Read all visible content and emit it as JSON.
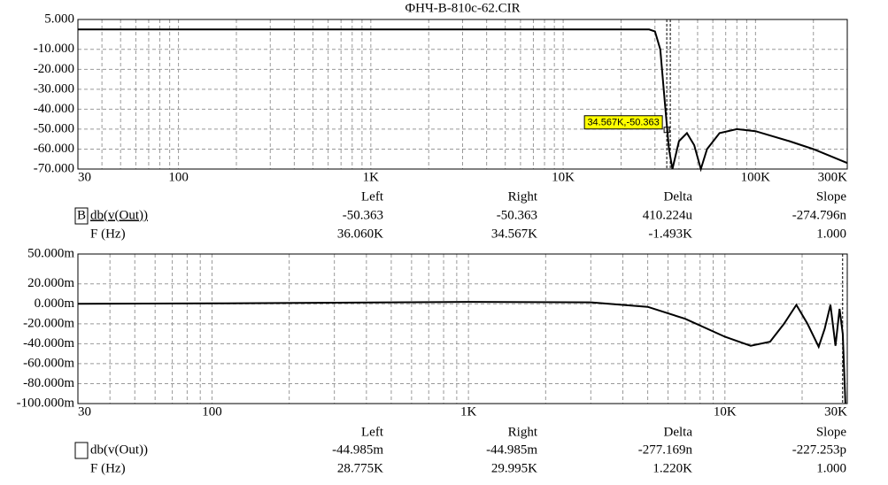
{
  "chart_data": [
    {
      "type": "line",
      "title": "ФНЧ-В-810с-62.CIR",
      "log_x": true,
      "grid": true,
      "minor_grid": true,
      "x": [
        30,
        1000,
        10000,
        28000,
        30000,
        32000,
        34000,
        35500,
        37000,
        40000,
        44000,
        48000,
        52000,
        56000,
        65000,
        80000,
        100000,
        150000,
        200000,
        300000
      ],
      "series": [
        {
          "name": "db(v(Out))",
          "color": "#000000",
          "values": [
            0,
            0,
            0,
            0,
            -1,
            -10,
            -40,
            -60,
            -70,
            -56,
            -52,
            -58,
            -70,
            -60,
            -52,
            -50,
            -51,
            -56,
            -60,
            -67
          ]
        }
      ],
      "xlim": [
        30,
        300000
      ],
      "xticks": [
        30,
        100,
        {
          "value": 1000,
          "label": "1K"
        },
        {
          "value": 10000,
          "label": "10K"
        },
        {
          "value": 100000,
          "label": "100K"
        },
        {
          "value": 300000,
          "label": "300K"
        }
      ],
      "ylim": [
        -70,
        5
      ],
      "yticks": [
        {
          "value": 5,
          "label": "5.000"
        },
        {
          "value": -10,
          "label": "-10.000"
        },
        {
          "value": -20,
          "label": "-20.000"
        },
        {
          "value": -30,
          "label": "-30.000"
        },
        {
          "value": -40,
          "label": "-40.000"
        },
        {
          "value": -50,
          "label": "-50.000"
        },
        {
          "value": -60,
          "label": "-60.000"
        },
        {
          "value": -70,
          "label": "-70.000"
        }
      ],
      "annotation": "34.567K,-50.363",
      "plot_marker": "B",
      "cursor_columns": [
        "Left",
        "Right",
        "Delta",
        "Slope"
      ],
      "cursor_rows": [
        {
          "values": [
            -50.363,
            -50.363,
            0.000410224,
            -2.74796e-07
          ],
          "value_labels": [
            "-50.363",
            "-50.363",
            "410.224u",
            "-274.796n"
          ]
        },
        {
          "name": "F (Hz)",
          "values": [
            36060,
            34567,
            -1493,
            1
          ],
          "value_labels": [
            "36.060K",
            "34.567K",
            "-1.493K",
            "1.000"
          ]
        }
      ]
    },
    {
      "type": "line",
      "log_x": true,
      "grid": true,
      "minor_grid": true,
      "x": [
        30,
        100,
        1000,
        3000,
        5000,
        7000,
        10000,
        12600,
        15000,
        17000,
        19000,
        21000,
        23200,
        24500,
        25800,
        27000,
        28000,
        28800,
        29500
      ],
      "series": [
        {
          "name": "db(v(Out))",
          "color": "#000000",
          "values": [
            0,
            0.0005,
            0.002,
            0.0015,
            -0.003,
            -0.015,
            -0.033,
            -0.042,
            -0.038,
            -0.02,
            -0.001,
            -0.02,
            -0.043,
            -0.025,
            -0.001,
            -0.042,
            -0.005,
            -0.03,
            -0.1
          ]
        }
      ],
      "xlim": [
        30,
        30000
      ],
      "xticks": [
        30,
        100,
        {
          "value": 1000,
          "label": "1K"
        },
        {
          "value": 10000,
          "label": "10K"
        },
        {
          "value": 30000,
          "label": "30K"
        }
      ],
      "ylim": [
        -0.1,
        0.05
      ],
      "yticks": [
        {
          "value": 0.05,
          "label": "50.000m"
        },
        {
          "value": 0.02,
          "label": "20.000m"
        },
        {
          "value": 0,
          "label": "0.000m"
        },
        {
          "value": -0.02,
          "label": "-20.000m"
        },
        {
          "value": -0.04,
          "label": "-40.000m"
        },
        {
          "value": -0.06,
          "label": "-60.000m"
        },
        {
          "value": -0.08,
          "label": "-80.000m"
        },
        {
          "value": -0.1,
          "label": "-100.000m"
        }
      ],
      "cursor_columns": [
        "Left",
        "Right",
        "Delta",
        "Slope"
      ],
      "cursor_rows": [
        {
          "values": [
            -0.044985,
            -0.044985,
            -2.77169e-07,
            -2.27253e-10
          ],
          "value_labels": [
            "-44.985m",
            "-44.985m",
            "-277.169n",
            "-227.253p"
          ]
        },
        {
          "name": "F (Hz)",
          "values": [
            28775,
            29995,
            1220,
            1
          ],
          "value_labels": [
            "28.775K",
            "29.995K",
            "1.220K",
            "1.000"
          ]
        }
      ]
    }
  ]
}
